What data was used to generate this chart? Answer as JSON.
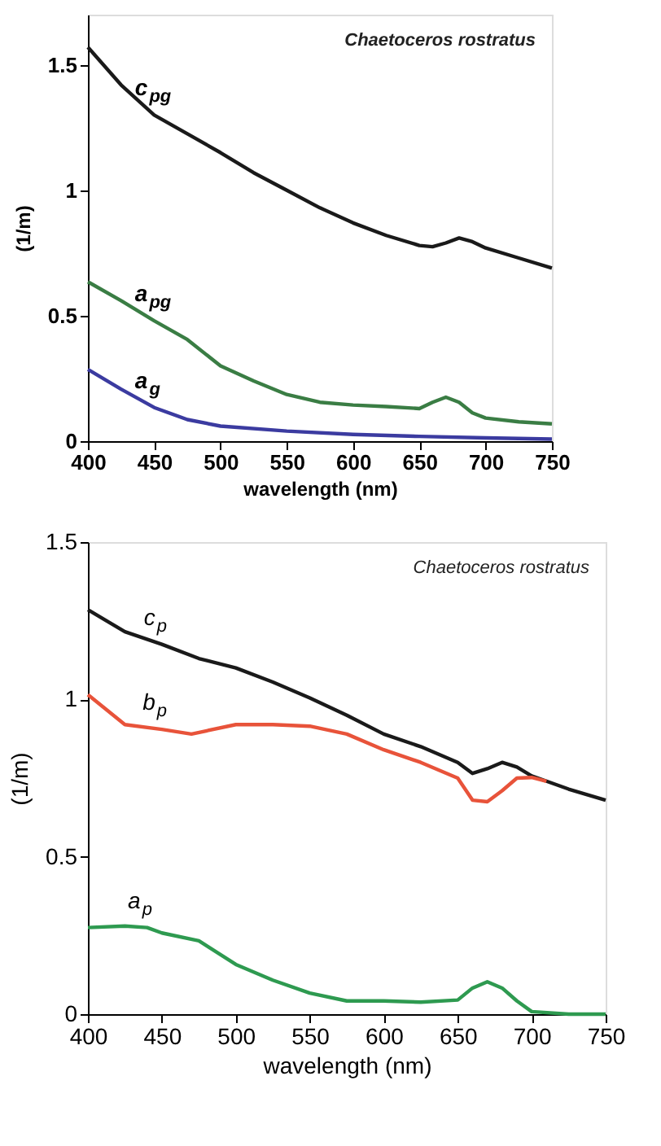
{
  "chart_data": [
    {
      "type": "line",
      "xlabel": "wavelength (nm)",
      "ylabel": "(1/m)",
      "annotations": [
        "Chaetoceros rostratus"
      ],
      "xlim": [
        400,
        750
      ],
      "xticks": [
        400,
        450,
        500,
        550,
        600,
        650,
        700,
        750
      ],
      "ylim": [
        0,
        1.7
      ],
      "yticks": [
        0,
        0.5,
        1,
        1.5
      ],
      "grid": false,
      "marker": "none",
      "line_style": "solid",
      "series": [
        {
          "name": "c$_{pg}$",
          "color": "#1a1a1a",
          "x": [
            400,
            425,
            450,
            475,
            500,
            525,
            550,
            575,
            600,
            625,
            650,
            660,
            670,
            680,
            690,
            700,
            725,
            750
          ],
          "values": [
            1.57,
            1.42,
            1.3,
            1.225,
            1.15,
            1.07,
            1.0,
            0.93,
            0.87,
            0.82,
            0.78,
            0.775,
            0.79,
            0.81,
            0.795,
            0.77,
            0.73,
            0.69
          ]
        },
        {
          "name": "a$_{pg}$",
          "color": "#3a7d44",
          "x": [
            400,
            425,
            450,
            475,
            500,
            525,
            550,
            575,
            600,
            625,
            650,
            660,
            670,
            680,
            690,
            700,
            725,
            750
          ],
          "values": [
            0.635,
            0.56,
            0.48,
            0.405,
            0.3,
            0.24,
            0.186,
            0.155,
            0.144,
            0.138,
            0.13,
            0.155,
            0.175,
            0.155,
            0.113,
            0.092,
            0.077,
            0.069
          ]
        },
        {
          "name": "a$_{g}$",
          "color": "#3b3ba0",
          "x": [
            400,
            425,
            450,
            475,
            500,
            550,
            600,
            650,
            700,
            750
          ],
          "values": [
            0.286,
            0.207,
            0.134,
            0.086,
            0.06,
            0.04,
            0.027,
            0.019,
            0.013,
            0.008
          ]
        }
      ]
    },
    {
      "type": "line",
      "xlabel": "wavelength (nm)",
      "ylabel": "(1/m)",
      "annotations": [
        "Chaetoceros rostratus"
      ],
      "xlim": [
        400,
        750
      ],
      "xticks": [
        400,
        450,
        500,
        550,
        600,
        650,
        700,
        750
      ],
      "ylim": [
        0,
        1.5
      ],
      "yticks": [
        0,
        0.5,
        1,
        1.5
      ],
      "grid": false,
      "marker": "none",
      "line_style": "solid",
      "series": [
        {
          "name": "c$_{p}$",
          "color": "#1a1a1a",
          "x": [
            400,
            425,
            450,
            475,
            500,
            525,
            550,
            575,
            600,
            625,
            650,
            660,
            670,
            680,
            690,
            700,
            725,
            750
          ],
          "values": [
            1.285,
            1.215,
            1.175,
            1.13,
            1.1,
            1.055,
            1.005,
            0.95,
            0.89,
            0.85,
            0.8,
            0.765,
            0.78,
            0.8,
            0.785,
            0.757,
            0.715,
            0.68
          ]
        },
        {
          "name": "b$_{p}$",
          "color": "#e8533a",
          "x": [
            400,
            425,
            450,
            470,
            500,
            525,
            550,
            575,
            600,
            625,
            650,
            660,
            670,
            680,
            690,
            700,
            710
          ],
          "values": [
            1.015,
            0.92,
            0.905,
            0.89,
            0.92,
            0.92,
            0.915,
            0.89,
            0.84,
            0.8,
            0.75,
            0.68,
            0.675,
            0.71,
            0.75,
            0.752,
            0.74
          ]
        },
        {
          "name": "a$_{p}$",
          "color": "#2e9a50",
          "x": [
            400,
            425,
            440,
            450,
            475,
            500,
            525,
            550,
            575,
            600,
            625,
            650,
            660,
            670,
            680,
            690,
            700,
            725,
            750
          ],
          "values": [
            0.275,
            0.28,
            0.275,
            0.258,
            0.233,
            0.158,
            0.108,
            0.067,
            0.042,
            0.042,
            0.038,
            0.045,
            0.083,
            0.103,
            0.083,
            0.042,
            0.008,
            0.0,
            0.0
          ]
        }
      ]
    }
  ]
}
